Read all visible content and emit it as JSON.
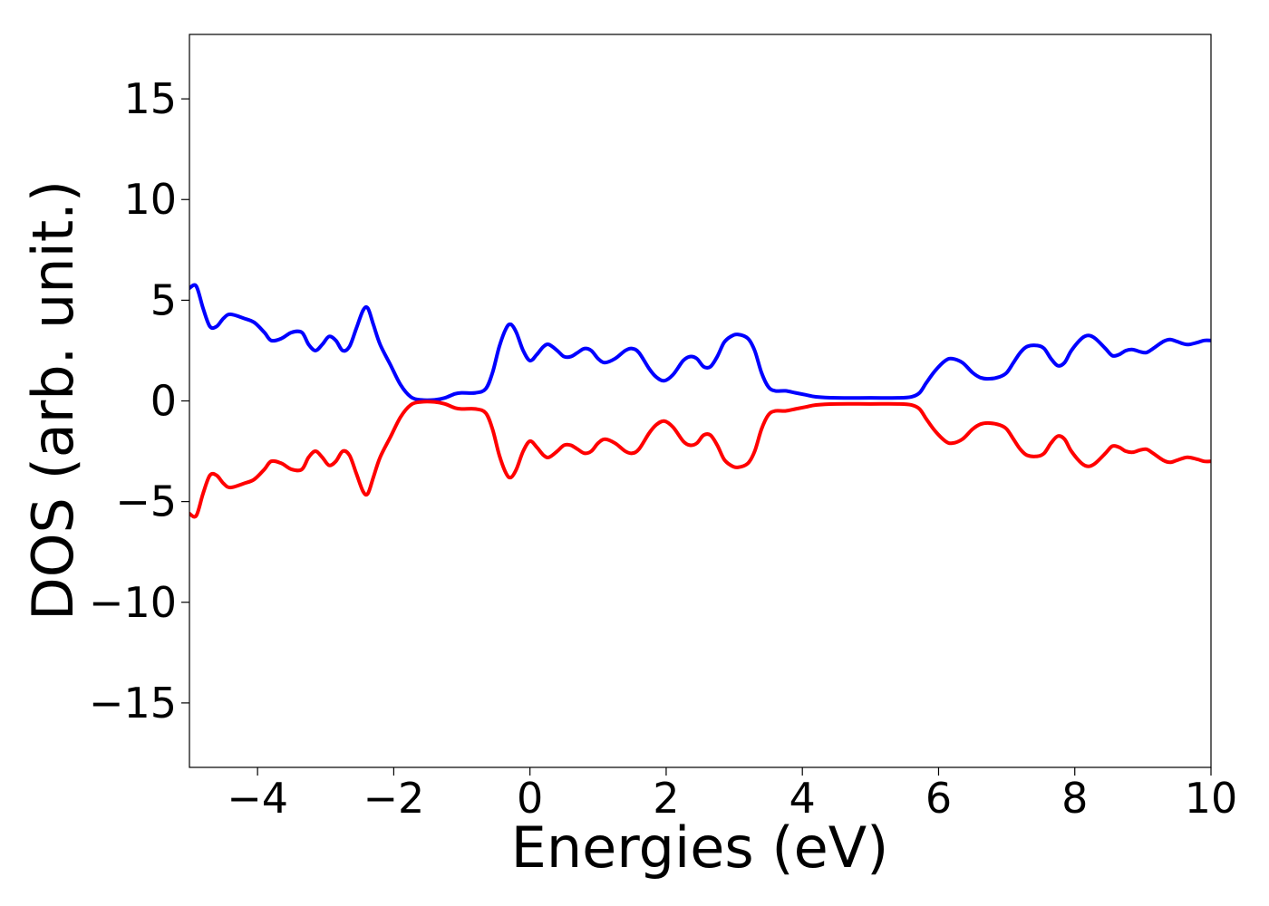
{
  "chart_data": {
    "type": "line",
    "title": "",
    "xlabel": "Energies (eV)",
    "ylabel": "DOS (arb. unit.)",
    "xlim": [
      -5,
      10
    ],
    "ylim": [
      -18.2,
      18.2
    ],
    "xticks": [
      -4,
      -2,
      0,
      2,
      4,
      6,
      8,
      10
    ],
    "xtick_labels": [
      "−4",
      "−2",
      "0",
      "2",
      "4",
      "6",
      "8",
      "10"
    ],
    "yticks": [
      15,
      10,
      5,
      0,
      -5,
      -10,
      -15
    ],
    "ytick_labels": [
      "15",
      "10",
      "5",
      "0",
      "−5",
      "−10",
      "−15"
    ],
    "grid": false,
    "legend": "none",
    "series": [
      {
        "color": "#0000ff",
        "points": [
          [
            -5.0,
            5.6
          ],
          [
            -4.9,
            5.7
          ],
          [
            -4.8,
            4.6
          ],
          [
            -4.7,
            3.7
          ],
          [
            -4.6,
            3.7
          ],
          [
            -4.5,
            4.1
          ],
          [
            -4.4,
            4.3
          ],
          [
            -4.2,
            4.1
          ],
          [
            -4.05,
            3.9
          ],
          [
            -3.9,
            3.4
          ],
          [
            -3.8,
            3.0
          ],
          [
            -3.65,
            3.1
          ],
          [
            -3.5,
            3.4
          ],
          [
            -3.35,
            3.4
          ],
          [
            -3.25,
            2.8
          ],
          [
            -3.15,
            2.5
          ],
          [
            -3.05,
            2.8
          ],
          [
            -2.95,
            3.2
          ],
          [
            -2.85,
            3.0
          ],
          [
            -2.75,
            2.5
          ],
          [
            -2.65,
            2.7
          ],
          [
            -2.55,
            3.6
          ],
          [
            -2.45,
            4.5
          ],
          [
            -2.38,
            4.6
          ],
          [
            -2.3,
            3.8
          ],
          [
            -2.2,
            2.8
          ],
          [
            -2.05,
            1.8
          ],
          [
            -1.9,
            0.8
          ],
          [
            -1.75,
            0.2
          ],
          [
            -1.6,
            0.05
          ],
          [
            -1.4,
            0.05
          ],
          [
            -1.25,
            0.15
          ],
          [
            -1.1,
            0.35
          ],
          [
            -1.0,
            0.4
          ],
          [
            -0.8,
            0.4
          ],
          [
            -0.65,
            0.6
          ],
          [
            -0.55,
            1.4
          ],
          [
            -0.45,
            2.7
          ],
          [
            -0.35,
            3.6
          ],
          [
            -0.28,
            3.8
          ],
          [
            -0.2,
            3.4
          ],
          [
            -0.1,
            2.5
          ],
          [
            0.0,
            2.0
          ],
          [
            0.1,
            2.3
          ],
          [
            0.2,
            2.7
          ],
          [
            0.28,
            2.8
          ],
          [
            0.4,
            2.5
          ],
          [
            0.5,
            2.2
          ],
          [
            0.6,
            2.2
          ],
          [
            0.7,
            2.4
          ],
          [
            0.8,
            2.6
          ],
          [
            0.9,
            2.5
          ],
          [
            1.0,
            2.1
          ],
          [
            1.1,
            1.9
          ],
          [
            1.25,
            2.1
          ],
          [
            1.4,
            2.5
          ],
          [
            1.5,
            2.6
          ],
          [
            1.6,
            2.4
          ],
          [
            1.75,
            1.6
          ],
          [
            1.85,
            1.2
          ],
          [
            1.97,
            1.0
          ],
          [
            2.1,
            1.3
          ],
          [
            2.25,
            2.0
          ],
          [
            2.35,
            2.2
          ],
          [
            2.45,
            2.1
          ],
          [
            2.55,
            1.7
          ],
          [
            2.65,
            1.7
          ],
          [
            2.75,
            2.2
          ],
          [
            2.85,
            2.9
          ],
          [
            2.95,
            3.2
          ],
          [
            3.05,
            3.3
          ],
          [
            3.2,
            3.1
          ],
          [
            3.3,
            2.5
          ],
          [
            3.4,
            1.4
          ],
          [
            3.5,
            0.7
          ],
          [
            3.6,
            0.5
          ],
          [
            3.75,
            0.5
          ],
          [
            3.9,
            0.4
          ],
          [
            4.05,
            0.3
          ],
          [
            4.2,
            0.2
          ],
          [
            4.5,
            0.15
          ],
          [
            5.0,
            0.15
          ],
          [
            5.4,
            0.15
          ],
          [
            5.6,
            0.2
          ],
          [
            5.72,
            0.4
          ],
          [
            5.82,
            0.9
          ],
          [
            5.95,
            1.5
          ],
          [
            6.1,
            2.0
          ],
          [
            6.2,
            2.1
          ],
          [
            6.35,
            1.9
          ],
          [
            6.5,
            1.4
          ],
          [
            6.62,
            1.15
          ],
          [
            6.75,
            1.1
          ],
          [
            6.9,
            1.2
          ],
          [
            7.0,
            1.4
          ],
          [
            7.1,
            1.9
          ],
          [
            7.2,
            2.4
          ],
          [
            7.3,
            2.7
          ],
          [
            7.45,
            2.75
          ],
          [
            7.55,
            2.6
          ],
          [
            7.65,
            2.1
          ],
          [
            7.75,
            1.75
          ],
          [
            7.85,
            1.9
          ],
          [
            7.95,
            2.5
          ],
          [
            8.1,
            3.1
          ],
          [
            8.2,
            3.25
          ],
          [
            8.3,
            3.1
          ],
          [
            8.45,
            2.6
          ],
          [
            8.55,
            2.25
          ],
          [
            8.65,
            2.3
          ],
          [
            8.75,
            2.5
          ],
          [
            8.85,
            2.55
          ],
          [
            8.95,
            2.45
          ],
          [
            9.05,
            2.4
          ],
          [
            9.15,
            2.6
          ],
          [
            9.3,
            2.95
          ],
          [
            9.4,
            3.05
          ],
          [
            9.5,
            2.95
          ],
          [
            9.65,
            2.8
          ],
          [
            9.8,
            2.9
          ],
          [
            9.9,
            3.0
          ],
          [
            10.0,
            3.0
          ]
        ]
      },
      {
        "color": "#ff0000",
        "points": [
          [
            -5.0,
            -5.6
          ],
          [
            -4.9,
            -5.7
          ],
          [
            -4.8,
            -4.6
          ],
          [
            -4.7,
            -3.7
          ],
          [
            -4.6,
            -3.7
          ],
          [
            -4.5,
            -4.1
          ],
          [
            -4.4,
            -4.3
          ],
          [
            -4.2,
            -4.1
          ],
          [
            -4.05,
            -3.9
          ],
          [
            -3.9,
            -3.4
          ],
          [
            -3.8,
            -3.0
          ],
          [
            -3.65,
            -3.1
          ],
          [
            -3.5,
            -3.4
          ],
          [
            -3.35,
            -3.4
          ],
          [
            -3.25,
            -2.8
          ],
          [
            -3.15,
            -2.5
          ],
          [
            -3.05,
            -2.8
          ],
          [
            -2.95,
            -3.2
          ],
          [
            -2.85,
            -3.0
          ],
          [
            -2.75,
            -2.5
          ],
          [
            -2.65,
            -2.7
          ],
          [
            -2.55,
            -3.6
          ],
          [
            -2.45,
            -4.5
          ],
          [
            -2.38,
            -4.6
          ],
          [
            -2.3,
            -3.8
          ],
          [
            -2.2,
            -2.8
          ],
          [
            -2.05,
            -1.8
          ],
          [
            -1.9,
            -0.8
          ],
          [
            -1.75,
            -0.2
          ],
          [
            -1.6,
            -0.05
          ],
          [
            -1.4,
            -0.05
          ],
          [
            -1.25,
            -0.15
          ],
          [
            -1.1,
            -0.35
          ],
          [
            -1.0,
            -0.4
          ],
          [
            -0.8,
            -0.4
          ],
          [
            -0.65,
            -0.6
          ],
          [
            -0.55,
            -1.4
          ],
          [
            -0.45,
            -2.7
          ],
          [
            -0.35,
            -3.6
          ],
          [
            -0.28,
            -3.8
          ],
          [
            -0.2,
            -3.4
          ],
          [
            -0.1,
            -2.5
          ],
          [
            0.0,
            -2.0
          ],
          [
            0.1,
            -2.3
          ],
          [
            0.2,
            -2.7
          ],
          [
            0.28,
            -2.8
          ],
          [
            0.4,
            -2.5
          ],
          [
            0.5,
            -2.2
          ],
          [
            0.6,
            -2.2
          ],
          [
            0.7,
            -2.4
          ],
          [
            0.8,
            -2.6
          ],
          [
            0.9,
            -2.5
          ],
          [
            1.0,
            -2.1
          ],
          [
            1.1,
            -1.9
          ],
          [
            1.25,
            -2.1
          ],
          [
            1.4,
            -2.5
          ],
          [
            1.5,
            -2.6
          ],
          [
            1.6,
            -2.4
          ],
          [
            1.75,
            -1.6
          ],
          [
            1.85,
            -1.2
          ],
          [
            1.97,
            -1.0
          ],
          [
            2.1,
            -1.3
          ],
          [
            2.25,
            -2.0
          ],
          [
            2.35,
            -2.2
          ],
          [
            2.45,
            -2.1
          ],
          [
            2.55,
            -1.7
          ],
          [
            2.65,
            -1.7
          ],
          [
            2.75,
            -2.2
          ],
          [
            2.85,
            -2.9
          ],
          [
            2.95,
            -3.2
          ],
          [
            3.05,
            -3.3
          ],
          [
            3.2,
            -3.1
          ],
          [
            3.3,
            -2.5
          ],
          [
            3.4,
            -1.4
          ],
          [
            3.5,
            -0.7
          ],
          [
            3.6,
            -0.5
          ],
          [
            3.75,
            -0.5
          ],
          [
            3.9,
            -0.4
          ],
          [
            4.05,
            -0.3
          ],
          [
            4.2,
            -0.2
          ],
          [
            4.5,
            -0.15
          ],
          [
            5.0,
            -0.15
          ],
          [
            5.4,
            -0.15
          ],
          [
            5.6,
            -0.2
          ],
          [
            5.72,
            -0.4
          ],
          [
            5.82,
            -0.9
          ],
          [
            5.95,
            -1.5
          ],
          [
            6.1,
            -2.0
          ],
          [
            6.2,
            -2.1
          ],
          [
            6.35,
            -1.9
          ],
          [
            6.5,
            -1.4
          ],
          [
            6.62,
            -1.15
          ],
          [
            6.75,
            -1.1
          ],
          [
            6.9,
            -1.2
          ],
          [
            7.0,
            -1.4
          ],
          [
            7.1,
            -1.9
          ],
          [
            7.2,
            -2.4
          ],
          [
            7.3,
            -2.7
          ],
          [
            7.45,
            -2.75
          ],
          [
            7.55,
            -2.6
          ],
          [
            7.65,
            -2.1
          ],
          [
            7.75,
            -1.75
          ],
          [
            7.85,
            -1.9
          ],
          [
            7.95,
            -2.5
          ],
          [
            8.1,
            -3.1
          ],
          [
            8.2,
            -3.25
          ],
          [
            8.3,
            -3.1
          ],
          [
            8.45,
            -2.6
          ],
          [
            8.55,
            -2.25
          ],
          [
            8.65,
            -2.3
          ],
          [
            8.75,
            -2.5
          ],
          [
            8.85,
            -2.55
          ],
          [
            8.95,
            -2.45
          ],
          [
            9.05,
            -2.4
          ],
          [
            9.15,
            -2.6
          ],
          [
            9.3,
            -2.95
          ],
          [
            9.4,
            -3.05
          ],
          [
            9.5,
            -2.95
          ],
          [
            9.65,
            -2.8
          ],
          [
            9.8,
            -2.9
          ],
          [
            9.9,
            -3.0
          ],
          [
            10.0,
            -3.0
          ]
        ]
      }
    ]
  }
}
